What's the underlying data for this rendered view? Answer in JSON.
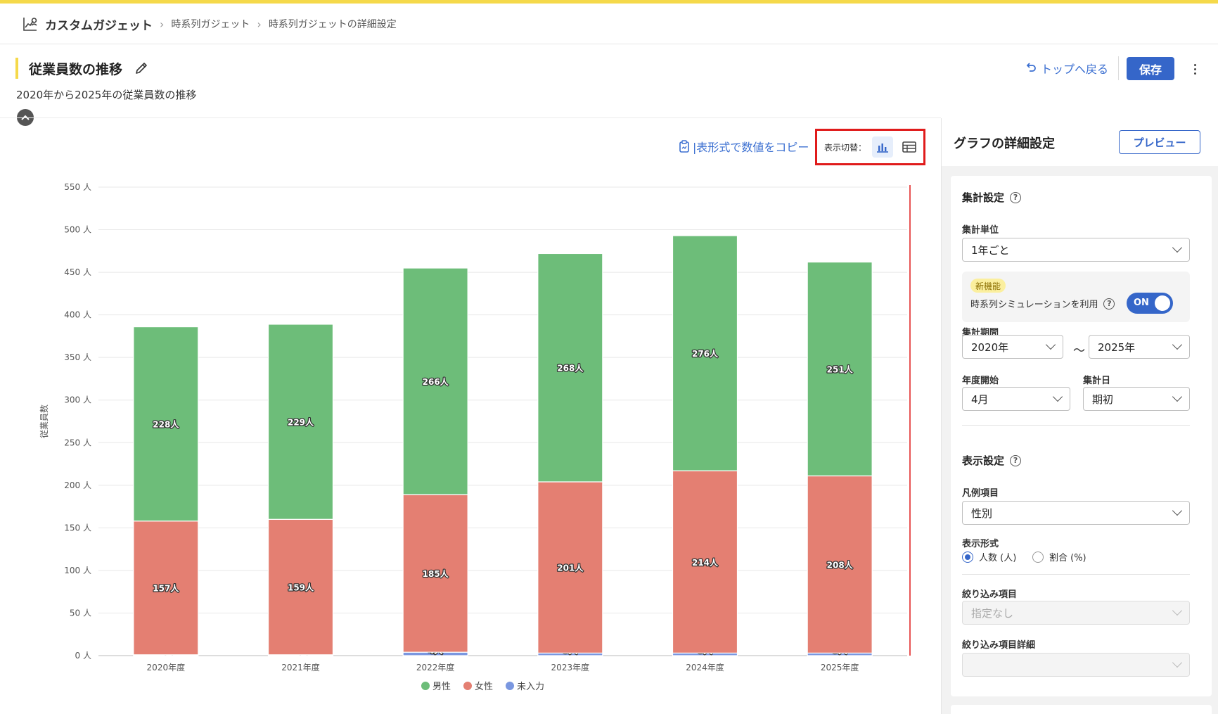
{
  "breadcrumb": {
    "root": "カスタムガジェット",
    "items": [
      "時系列ガジェット",
      "時系列ガジェットの詳細設定"
    ]
  },
  "page": {
    "title": "従業員数の推移",
    "subtitle": "2020年から2025年の従業員数の推移",
    "back_label": "トップへ戻る",
    "save_label": "保存"
  },
  "toolbar": {
    "copy_label": "|表形式で数値をコピー",
    "view_toggle_label": "表示切替："
  },
  "colors": {
    "male": "#6dbd79",
    "female": "#e47f72",
    "unknown": "#7a97e0",
    "accent": "#3566c9",
    "highlight": "#e01b1b"
  },
  "chart_data": {
    "type": "bar",
    "stacked": true,
    "categories": [
      "2020年度",
      "2021年度",
      "2022年度",
      "2023年度",
      "2024年度",
      "2025年度"
    ],
    "series": [
      {
        "name": "未入力",
        "values": [
          1,
          1,
          4,
          3,
          3,
          3
        ],
        "labels": [
          "1人",
          "1人",
          "4人",
          "3人",
          "3人",
          "3人"
        ]
      },
      {
        "name": "女性",
        "values": [
          157,
          159,
          185,
          201,
          214,
          208
        ],
        "labels": [
          "157人",
          "159人",
          "185人",
          "201人",
          "214人",
          "208人"
        ]
      },
      {
        "name": "男性",
        "values": [
          228,
          229,
          266,
          268,
          276,
          251
        ],
        "labels": [
          "228人",
          "229人",
          "266人",
          "268人",
          "276人",
          "251人"
        ]
      }
    ],
    "ylabel": "従業員数",
    "ylim": [
      0,
      550
    ],
    "yticks": [
      "0 人",
      "50 人",
      "100 人",
      "150 人",
      "200 人",
      "250 人",
      "300 人",
      "350 人",
      "400 人",
      "450 人",
      "500 人",
      "550 人"
    ],
    "legend": [
      "男性",
      "女性",
      "未入力"
    ],
    "legend_position": "bottom",
    "grid": true
  },
  "panel": {
    "title": "グラフの詳細設定",
    "preview_label": "プレビュー",
    "aggregation": {
      "title": "集計設定",
      "unit_label": "集計単位",
      "unit_value": "1年ごと",
      "new_badge": "新機能",
      "sim_label": "時系列シミュレーションを利用",
      "sim_state": "ON",
      "period_label": "集計期間",
      "period_from": "2020年",
      "period_tilde": "〜",
      "period_to": "2025年",
      "fy_start_label": "年度開始",
      "fy_start_value": "4月",
      "agg_day_label": "集計日",
      "agg_day_value": "期初"
    },
    "display": {
      "title": "表示設定",
      "legend_label": "凡例項目",
      "legend_value": "性別",
      "format_label": "表示形式",
      "format_options": [
        "人数 (人)",
        "割合 (%)"
      ],
      "filter_label": "絞り込み項目",
      "filter_placeholder": "指定なし",
      "filter_detail_label": "絞り込み項目詳細"
    }
  }
}
